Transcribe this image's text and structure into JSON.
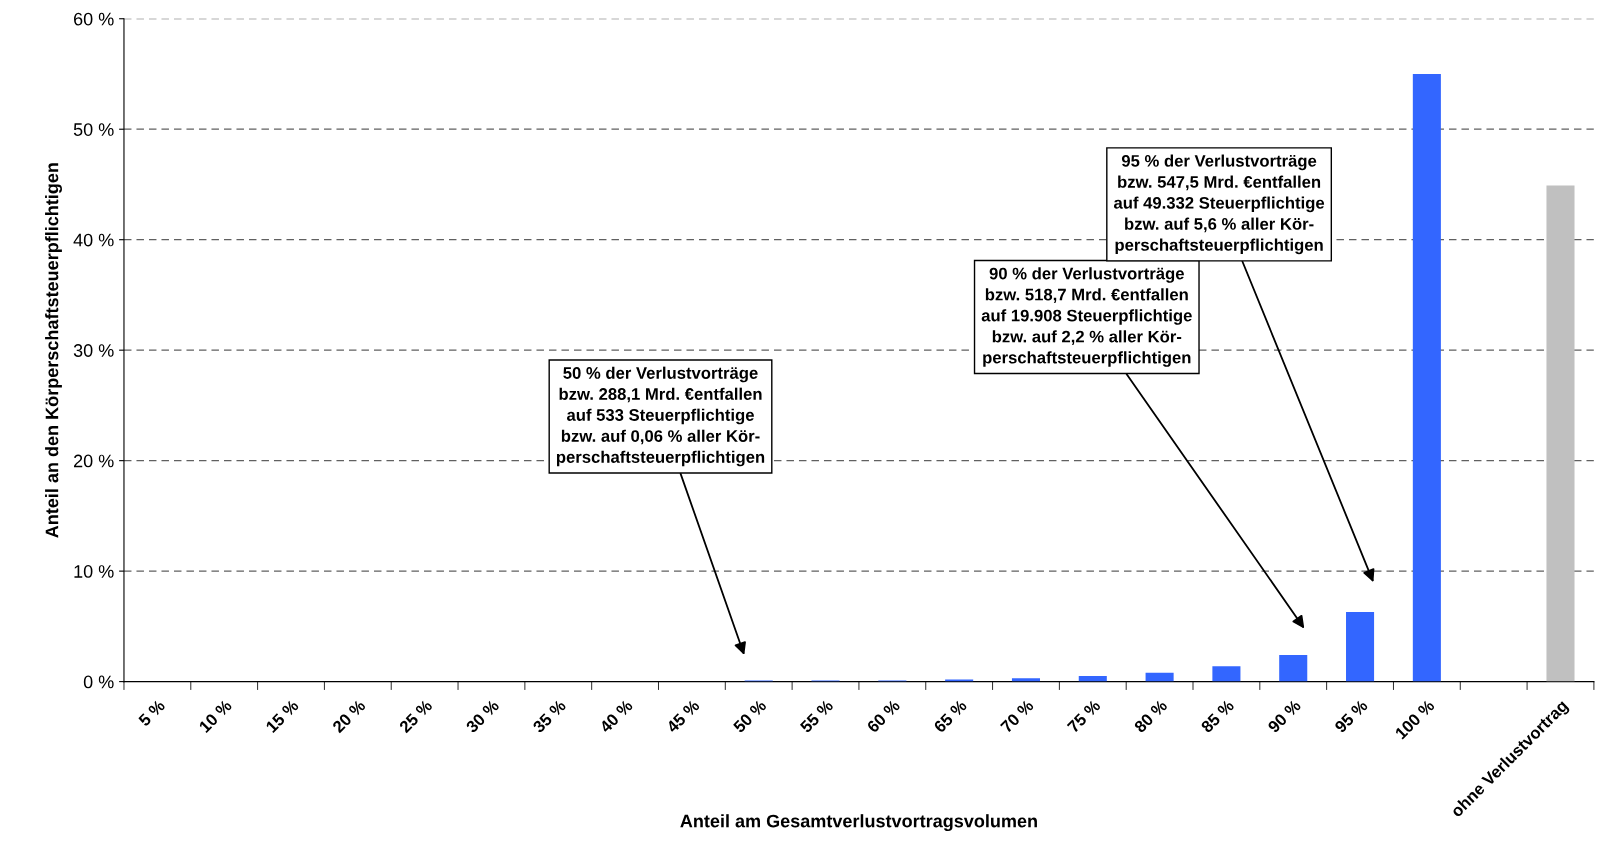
{
  "chart_data": {
    "type": "bar",
    "xlabel": "Anteil am Gesamtverlustvortragsvolumen",
    "ylabel": "Anteil an den Körperschaftsteuerpflichtigen",
    "categories": [
      "5 %",
      "10 %",
      "15 %",
      "20 %",
      "25 %",
      "30 %",
      "35 %",
      "40 %",
      "45 %",
      "50 %",
      "55 %",
      "60 %",
      "65 %",
      "70 %",
      "75 %",
      "80 %",
      "85 %",
      "90 %",
      "95 %",
      "100 %",
      null,
      "ohne Verlustvortrag"
    ],
    "values": [
      0,
      0,
      0,
      0,
      0,
      0,
      0,
      0,
      0,
      0.1,
      0.1,
      0.1,
      0.2,
      0.3,
      0.5,
      0.8,
      1.4,
      2.4,
      6.3,
      55.0,
      null,
      44.9
    ],
    "colors": [
      "#3366ff",
      "#3366ff",
      "#3366ff",
      "#3366ff",
      "#3366ff",
      "#3366ff",
      "#3366ff",
      "#3366ff",
      "#3366ff",
      "#3366ff",
      "#3366ff",
      "#3366ff",
      "#3366ff",
      "#3366ff",
      "#3366ff",
      "#3366ff",
      "#3366ff",
      "#3366ff",
      "#3366ff",
      "#3366ff",
      "#3366ff",
      "#c0c0c0"
    ],
    "ylim": [
      0,
      60
    ],
    "yticks": [
      {
        "value": 0,
        "label": "0 %"
      },
      {
        "value": 10,
        "label": "10 %"
      },
      {
        "value": 20,
        "label": "20 %"
      },
      {
        "value": 30,
        "label": "30 %"
      },
      {
        "value": 40,
        "label": "40 %"
      },
      {
        "value": 50,
        "label": "50 %"
      },
      {
        "value": 60,
        "label": "60 %"
      }
    ],
    "grid": "y",
    "annotations": [
      "50 % der Verlustvorträge\nbzw. 288,1 Mrd. €entfallen\nauf 533 Steuerpflichtige\nbzw. auf 0,06 % aller Kör-\nperschaftsteuerpflichtigen",
      "90 % der Verlustvorträge\nbzw. 518,7 Mrd. €entfallen\nauf 19.908 Steuerpflichtige\nbzw. auf 2,2 % aller Kör-\nperschaftsteuerpflichtigen",
      "95 % der Verlustvorträge\nbzw. 547,5 Mrd. €entfallen\nauf 49.332 Steuerpflichtige\nbzw. auf 5,6 % aller Kör-\nperschaftsteuerpflichtigen"
    ]
  }
}
